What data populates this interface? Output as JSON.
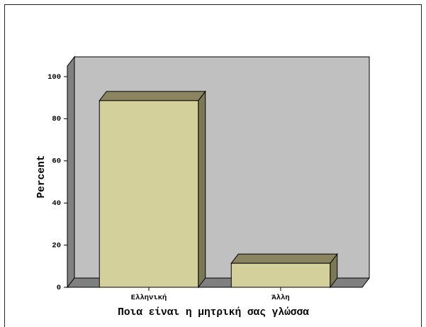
{
  "chart_data": {
    "type": "bar",
    "three_d": true,
    "categories": [
      "Ελληνική",
      "Άλλη"
    ],
    "values": [
      88.6,
      11.4
    ],
    "xlabel": "Ποια είναι η μητρική σας γλώσσα",
    "ylabel": "Percent",
    "ylim": [
      0,
      105
    ],
    "yticks": [
      0,
      20,
      40,
      60,
      80,
      100
    ],
    "grid": false,
    "legend": "none",
    "colors": {
      "bar_front": "#D4D09C",
      "bar_top": "#8A8560",
      "bar_side": "#7C7755",
      "back_wall": "#C0C0C0",
      "side_wall": "#808080",
      "floor": "#808080",
      "outline": "#000000"
    }
  }
}
